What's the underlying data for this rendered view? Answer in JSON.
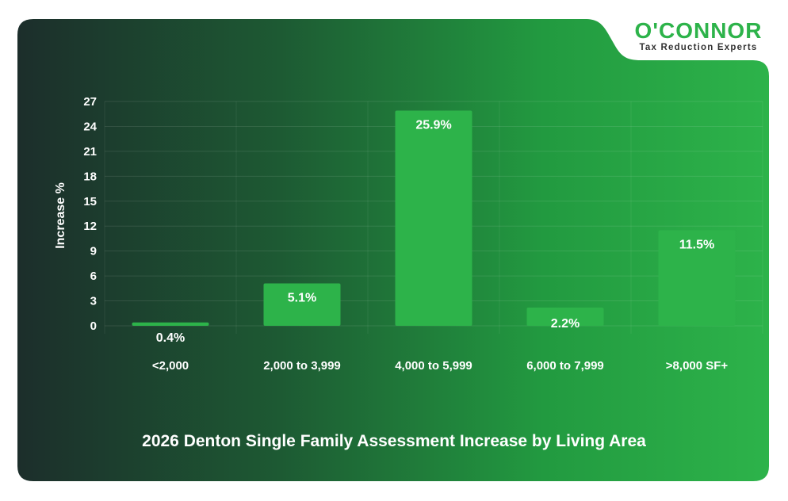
{
  "brand": {
    "name": "O'CONNOR",
    "tagline": "Tax Reduction Experts",
    "color": "#2db34a"
  },
  "colors": {
    "background_dark": "#1c2e2b",
    "background_bright": "#2db34a",
    "bar": "#2db34a",
    "text": "#ffffff"
  },
  "chart_data": {
    "type": "bar",
    "title": "2026 Denton Single Family Assessment Increase by Living Area",
    "xlabel": "",
    "ylabel": "Increase %",
    "categories": [
      "<2,000",
      "2,000 to 3,999",
      "4,000 to 5,999",
      "6,000 to 7,999",
      ">8,000 SF+"
    ],
    "values": [
      0.4,
      5.1,
      25.9,
      2.2,
      11.5
    ],
    "value_labels": [
      "0.4%",
      "5.1%",
      "25.9%",
      "2.2%",
      "11.5%"
    ],
    "yticks": [
      "0",
      "3",
      "6",
      "9",
      "12",
      "15",
      "18",
      "21",
      "24",
      "27"
    ],
    "ylim": [
      0,
      27
    ],
    "grid": true,
    "legend": "none"
  }
}
